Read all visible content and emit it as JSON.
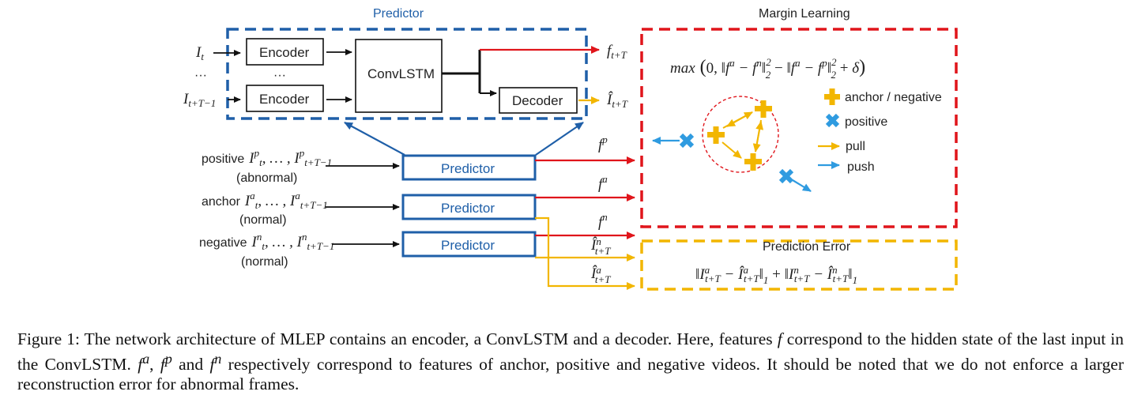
{
  "titles": {
    "predictor": "Predictor",
    "margin_learning": "Margin Learning",
    "prediction_error": "Prediction Error"
  },
  "blocks": {
    "encoder": "Encoder",
    "convlstm": "ConvLSTM",
    "decoder": "Decoder",
    "predictor": "Predictor",
    "dots": "···"
  },
  "inputs": {
    "i_t": "I",
    "i_t_sub": "t",
    "i_last": "I",
    "i_last_sub": "t+T−1",
    "dots": "···"
  },
  "outputs": {
    "f_future": "f",
    "f_future_sub": "t+T",
    "i_hat": "Î",
    "i_hat_sub": "t+T"
  },
  "sequences": {
    "positive_word": "positive",
    "positive_sub": "(abnormal)",
    "anchor_word": "anchor",
    "anchor_sub": "(normal)",
    "negative_word": "negative",
    "negative_sub": "(normal)"
  },
  "features": {
    "fp": "f",
    "fp_sup": "p",
    "fa": "f",
    "fa_sup": "a",
    "fn": "f",
    "fn_sup": "n",
    "in_hat": "Î",
    "in_hat_sup": "n",
    "in_hat_sub": "t+T",
    "ia_hat": "Î",
    "ia_hat_sup": "a",
    "ia_hat_sub": "t+T"
  },
  "formulas": {
    "margin": "max",
    "prediction_error": "‖I"
  },
  "legend": {
    "anchor_negative": "anchor / negative",
    "positive": "positive",
    "pull": "pull",
    "push": "push"
  },
  "colors": {
    "blue": "#1f5fa8",
    "red": "#e0151b",
    "yellow": "#f2b600",
    "light_blue": "#2f9be0",
    "arrow_black": "#111111"
  },
  "caption": {
    "p1": "Figure 1: The network architecture of MLEP contains an encoder, a ConvLSTM and a decoder. Here, features ",
    "f": "f",
    "p2": " correspond to the hidden state of the last input in the ConvLSTM. ",
    "fa": "f",
    "fa_sup": "a",
    "comma": ", ",
    "fp": "f",
    "fp_sup": "p",
    "and": " and ",
    "fn": "f",
    "fn_sup": "n",
    "p3": " respectively correspond to features of anchor, positive and negative videos. It should be noted that we do not enforce a larger reconstruction error for abnormal frames."
  }
}
